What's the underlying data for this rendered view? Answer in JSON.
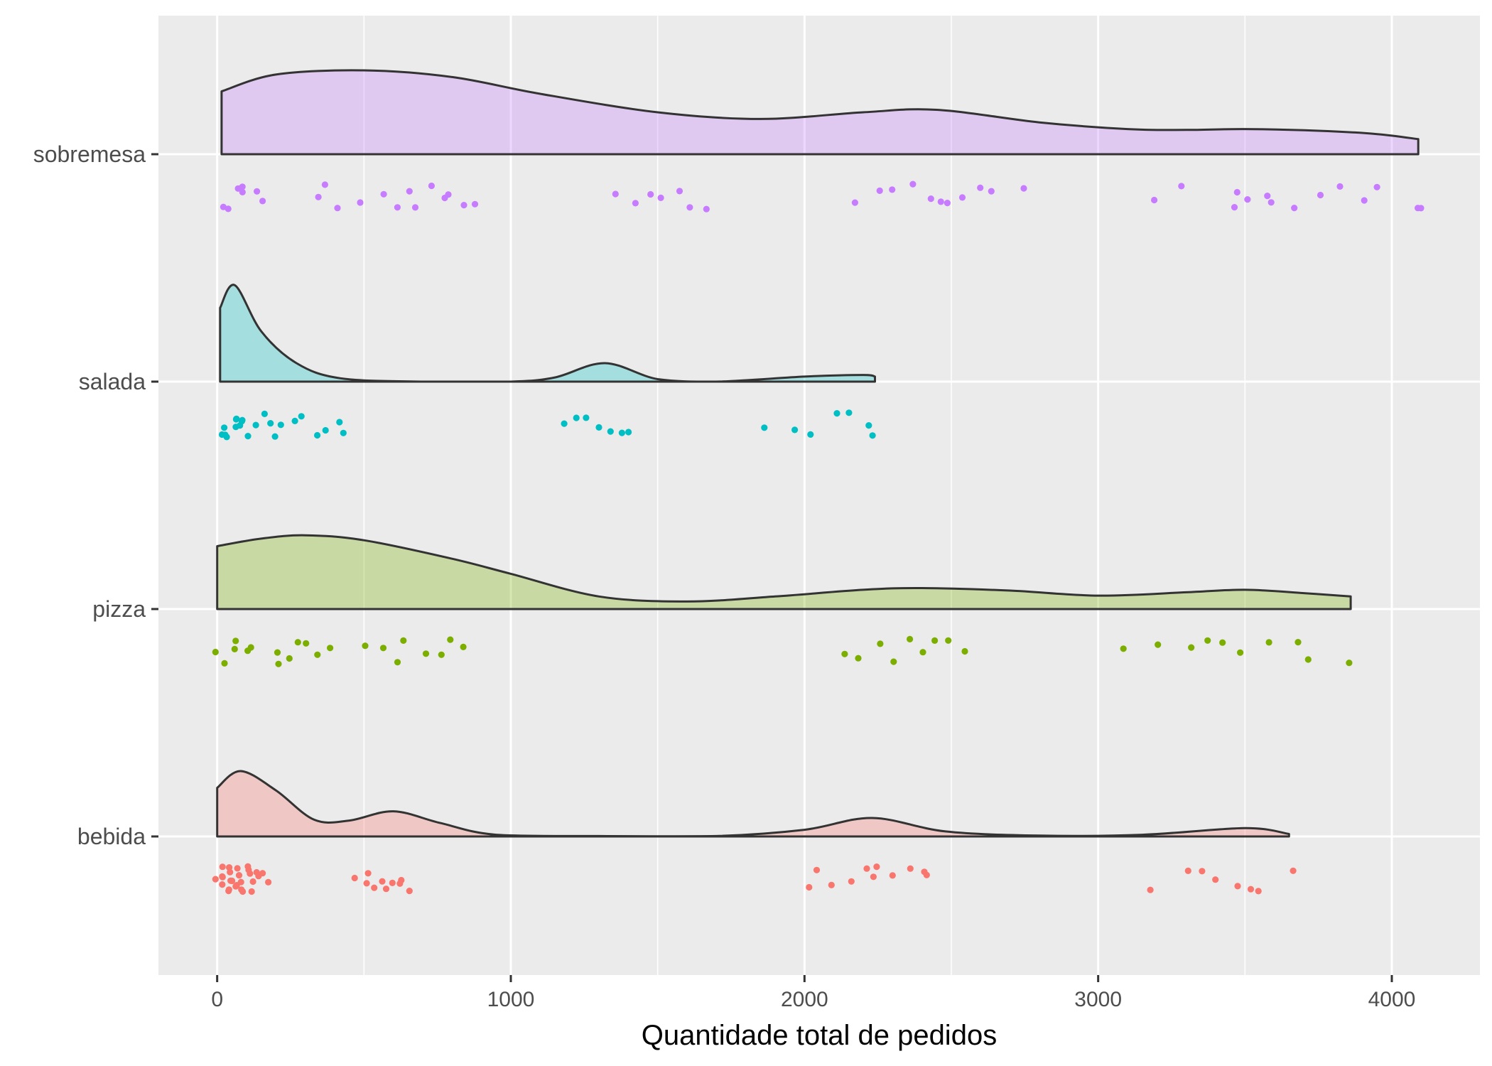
{
  "chart_data": {
    "type": "raincloud",
    "title": "",
    "xlabel": "Quantidade total de pedidos",
    "ylabel": "",
    "xlim": [
      -200,
      4300
    ],
    "x_ticks": [
      0,
      1000,
      2000,
      3000,
      4000
    ],
    "x_tick_labels": [
      "0",
      "1000",
      "2000",
      "3000",
      "4000"
    ],
    "grid": true,
    "legend": "none",
    "categories": [
      "bebida",
      "pizza",
      "salada",
      "sobremesa"
    ],
    "series": [
      {
        "name": "bebida",
        "fill": "#F8766D",
        "density": {
          "x": [
            0,
            80,
            200,
            330,
            450,
            600,
            760,
            950,
            1300,
            1700,
            2000,
            2230,
            2480,
            2800,
            3150,
            3500,
            3650
          ],
          "y": [
            0.58,
            0.78,
            0.55,
            0.2,
            0.19,
            0.3,
            0.16,
            0.02,
            0.005,
            0.005,
            0.08,
            0.22,
            0.06,
            0.01,
            0.02,
            0.1,
            0.03
          ]
        },
        "points": [
          5,
          10,
          15,
          20,
          25,
          30,
          35,
          40,
          45,
          50,
          55,
          60,
          65,
          70,
          75,
          80,
          85,
          90,
          95,
          100,
          105,
          110,
          120,
          130,
          140,
          150,
          165,
          480,
          500,
          520,
          540,
          560,
          580,
          600,
          620,
          640,
          650,
          2000,
          2050,
          2100,
          2150,
          2200,
          2230,
          2260,
          2300,
          2350,
          2400,
          2430,
          3180,
          3290,
          3340,
          3400,
          3480,
          3520,
          3560,
          3650
        ]
      },
      {
        "name": "pizza",
        "fill": "#7CAE00",
        "density": {
          "x": [
            0,
            150,
            300,
            500,
            800,
            1000,
            1300,
            1600,
            1900,
            2200,
            2400,
            2700,
            3000,
            3300,
            3500,
            3700,
            3860
          ],
          "y": [
            0.75,
            0.84,
            0.88,
            0.82,
            0.6,
            0.42,
            0.15,
            0.09,
            0.15,
            0.23,
            0.25,
            0.22,
            0.16,
            0.2,
            0.23,
            0.19,
            0.15
          ]
        },
        "points": [
          10,
          30,
          50,
          70,
          90,
          110,
          200,
          220,
          240,
          260,
          300,
          340,
          380,
          500,
          550,
          600,
          650,
          700,
          750,
          800,
          850,
          2120,
          2180,
          2250,
          2300,
          2350,
          2400,
          2450,
          2500,
          2560,
          3090,
          3190,
          3320,
          3380,
          3440,
          3500,
          3580,
          3680,
          3720,
          3860
        ]
      },
      {
        "name": "salada",
        "fill": "#00BFC4",
        "density": {
          "x": [
            10,
            60,
            150,
            270,
            420,
            700,
            1000,
            1150,
            1320,
            1500,
            1700,
            2000,
            2200,
            2240
          ],
          "y": [
            0.88,
            1.15,
            0.6,
            0.22,
            0.04,
            0.0,
            0.0,
            0.05,
            0.22,
            0.03,
            0.0,
            0.06,
            0.08,
            0.06
          ]
        },
        "points": [
          10,
          20,
          30,
          40,
          50,
          60,
          70,
          80,
          90,
          100,
          120,
          140,
          160,
          180,
          200,
          220,
          250,
          300,
          330,
          360,
          400,
          420,
          1170,
          1220,
          1260,
          1300,
          1340,
          1370,
          1410,
          1860,
          1970,
          2030,
          2100,
          2150,
          2210,
          2240
        ]
      },
      {
        "name": "sobremesa",
        "fill": "#C77CFF",
        "density": {
          "x": [
            15,
            200,
            500,
            800,
            1100,
            1500,
            1850,
            2200,
            2450,
            2800,
            3100,
            3300,
            3500,
            3750,
            3950,
            4090
          ],
          "y": [
            0.75,
            0.95,
            1.0,
            0.92,
            0.72,
            0.5,
            0.42,
            0.5,
            0.53,
            0.38,
            0.3,
            0.29,
            0.3,
            0.28,
            0.24,
            0.18
          ]
        },
        "points": [
          20,
          40,
          60,
          80,
          100,
          120,
          140,
          340,
          380,
          420,
          500,
          560,
          600,
          640,
          680,
          720,
          760,
          800,
          840,
          880,
          1370,
          1430,
          1480,
          1520,
          1560,
          1600,
          1650,
          2180,
          2250,
          2300,
          2380,
          2420,
          2460,
          2500,
          2550,
          2600,
          2650,
          2740,
          3180,
          3290,
          3450,
          3480,
          3520,
          3560,
          3600,
          3680,
          3750,
          3820,
          3900,
          3950,
          4080,
          4090
        ]
      }
    ]
  }
}
